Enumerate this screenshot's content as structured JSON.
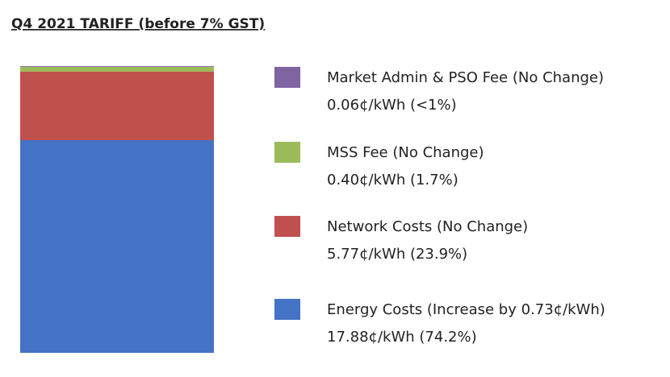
{
  "chart_data": {
    "type": "bar",
    "stacked": true,
    "title": "Q4 2021 TARIFF (before 7% GST)",
    "series": [
      {
        "name": "Energy Costs (Increase by 0.73¢/kWh)",
        "color": "#4472c4",
        "values": [
          17.88
        ],
        "value_labels": [
          "17.88¢/kWh (74.2%)"
        ]
      },
      {
        "name": "Network Costs (No Change)",
        "color": "#c0504d",
        "values": [
          5.77
        ],
        "value_labels": [
          "5.77¢/kWh (23.9%)"
        ]
      },
      {
        "name": "MSS Fee (No Change)",
        "color": "#9bbb59",
        "values": [
          0.4
        ],
        "value_labels": [
          "0.40¢/kWh (1.7%)"
        ]
      },
      {
        "name": "Market Admin & PSO Fee (No Change)",
        "color": "#8064a2",
        "values": [
          0.06
        ],
        "value_labels": [
          "0.06¢/kWh (<1%)"
        ]
      }
    ]
  }
}
